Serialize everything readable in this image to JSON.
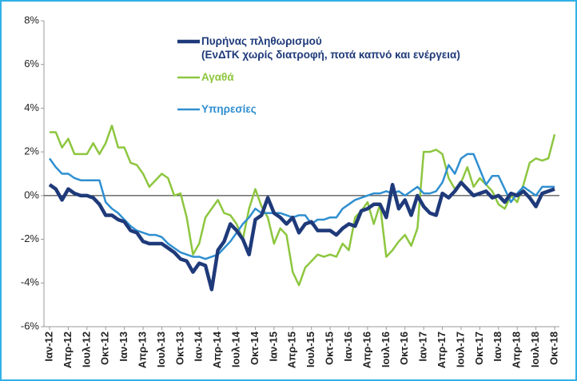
{
  "chart_data": {
    "type": "line",
    "categories": [
      "Ιαν-12",
      null,
      null,
      "Απρ-12",
      null,
      null,
      "Ιουλ-12",
      null,
      null,
      "Οκτ-12",
      null,
      null,
      "Ιαν-13",
      null,
      null,
      "Απρ-13",
      null,
      null,
      "Ιουλ-13",
      null,
      null,
      "Οκτ-13",
      null,
      null,
      "Ιαν-14",
      null,
      null,
      "Απρ-14",
      null,
      null,
      "Ιουλ-14",
      null,
      null,
      "Οκτ-14",
      null,
      null,
      "Ιαν-15",
      null,
      null,
      "Απρ-15",
      null,
      null,
      "Ιουλ-15",
      null,
      null,
      "Οκτ-15",
      null,
      null,
      "Ιαν-16",
      null,
      null,
      "Απρ-16",
      null,
      null,
      "Ιουλ-16",
      null,
      null,
      "Οκτ-16",
      null,
      null,
      "Ιαν-17",
      null,
      null,
      "Απρ-17",
      null,
      null,
      "Ιουλ-17",
      null,
      null,
      "Οκτ-17",
      null,
      null,
      "Ιαν-18",
      null,
      null,
      "Απρ-18",
      null,
      null,
      "Ιουλ-18",
      null,
      null,
      "Οκτ-18"
    ],
    "series": [
      {
        "name": "Πυρήνας πληθωρισμού\n(ΕνΔΤΚ χωρίς διατροφή, ποτά καπνό και ενέργεια)",
        "color": "#1f3a7a",
        "width": 4.5,
        "values": [
          0.5,
          0.3,
          -0.2,
          0.3,
          0.1,
          0.0,
          0.0,
          -0.1,
          -0.4,
          -0.9,
          -0.9,
          -1.1,
          -1.2,
          -1.6,
          -1.7,
          -2.1,
          -2.2,
          -2.2,
          -2.2,
          -2.4,
          -2.6,
          -2.9,
          -3.0,
          -3.5,
          -3.1,
          -3.2,
          -4.3,
          -2.5,
          -2.1,
          -1.3,
          -1.6,
          -2.0,
          -2.7,
          -1.1,
          -0.9,
          -0.1,
          -0.8,
          -1.0,
          -1.3,
          -1.0,
          -1.7,
          -1.3,
          -1.2,
          -1.6,
          -1.6,
          -1.6,
          -1.8,
          -1.5,
          -1.3,
          -1.4,
          -0.7,
          -0.6,
          -0.4,
          -0.4,
          -1.0,
          0.5,
          -0.6,
          -0.2,
          -0.9,
          0.0,
          -0.5,
          -0.8,
          -0.9,
          0.1,
          -0.1,
          0.2,
          0.6,
          0.3,
          0.0,
          0.1,
          0.2,
          -0.1,
          0.0,
          -0.3,
          0.1,
          0.0,
          0.2,
          -0.1,
          -0.5,
          0.1,
          0.2,
          0.3
        ]
      },
      {
        "name": "Αγαθά",
        "color": "#8dc63f",
        "width": 2.5,
        "values": [
          2.9,
          2.9,
          2.2,
          2.6,
          1.9,
          1.9,
          1.9,
          2.4,
          1.9,
          2.4,
          3.2,
          2.2,
          2.2,
          1.5,
          1.4,
          1.0,
          0.4,
          0.7,
          1.0,
          0.8,
          0.0,
          0.1,
          -1.0,
          -2.7,
          -2.2,
          -1.0,
          -0.6,
          -0.2,
          -0.8,
          -0.9,
          -1.3,
          -2.0,
          -0.6,
          0.3,
          -0.5,
          -1.0,
          -2.2,
          -1.5,
          -1.8,
          -3.5,
          -4.1,
          -3.3,
          -3.0,
          -2.7,
          -2.8,
          -2.7,
          -2.8,
          -2.2,
          -2.5,
          -1.0,
          -0.7,
          -0.3,
          -1.3,
          -0.4,
          -2.8,
          -2.5,
          -2.1,
          -1.8,
          -2.3,
          -1.5,
          2.0,
          2.0,
          2.1,
          1.9,
          0.8,
          0.3,
          0.6,
          1.3,
          0.4,
          0.8,
          0.5,
          0.2,
          -0.4,
          -0.6,
          0.0,
          -0.3,
          0.5,
          1.5,
          1.7,
          1.6,
          1.7,
          2.8
        ]
      },
      {
        "name": "Υπηρεσίες",
        "color": "#2f8fd0",
        "width": 2.5,
        "values": [
          1.7,
          1.3,
          1.0,
          1.0,
          0.8,
          0.7,
          0.7,
          0.7,
          0.7,
          -0.3,
          -0.6,
          -0.8,
          -1.1,
          -1.4,
          -1.6,
          -1.7,
          -1.8,
          -1.8,
          -1.9,
          -2.2,
          -2.4,
          -2.6,
          -2.7,
          -2.8,
          -2.8,
          -2.9,
          -2.8,
          -2.7,
          -2.4,
          -2.1,
          -1.7,
          -1.3,
          -1.0,
          -0.6,
          -0.8,
          -0.8,
          -0.8,
          -0.8,
          -0.9,
          -1.0,
          -0.9,
          -0.9,
          -1.3,
          -1.1,
          -1.1,
          -1.0,
          -1.0,
          -0.6,
          -0.4,
          -0.2,
          -0.1,
          0.0,
          0.1,
          0.1,
          0.2,
          0.1,
          0.2,
          0.0,
          0.2,
          0.4,
          0.1,
          0.1,
          0.2,
          0.6,
          1.4,
          1.0,
          1.7,
          1.9,
          1.9,
          1.2,
          0.5,
          0.9,
          0.9,
          0.3,
          -0.3,
          0.1,
          0.4,
          0.2,
          0.0,
          0.4,
          0.4,
          0.4
        ]
      }
    ],
    "ylim": [
      -6,
      8
    ],
    "yticks": [
      {
        "value": -6,
        "label": "-6%"
      },
      {
        "value": -4,
        "label": "-4%"
      },
      {
        "value": -2,
        "label": "-2%"
      },
      {
        "value": 0,
        "label": "0%"
      },
      {
        "value": 2,
        "label": "2%"
      },
      {
        "value": 4,
        "label": "4%"
      },
      {
        "value": 6,
        "label": "6%"
      },
      {
        "value": 8,
        "label": "8%"
      }
    ],
    "grid": false
  }
}
